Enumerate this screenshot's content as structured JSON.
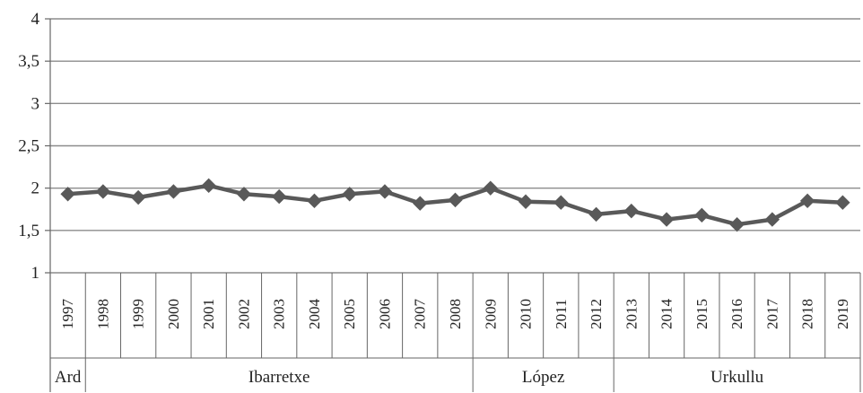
{
  "chart_data": {
    "type": "line",
    "categories": [
      "1997",
      "1998",
      "1999",
      "2000",
      "2001",
      "2002",
      "2003",
      "2004",
      "2005",
      "2006",
      "2007",
      "2008",
      "2009",
      "2010",
      "2011",
      "2012",
      "2013",
      "2014",
      "2015",
      "2016",
      "2017",
      "2018",
      "2019"
    ],
    "series": [
      {
        "values": [
          1.93,
          1.96,
          1.89,
          1.96,
          2.03,
          1.93,
          1.9,
          1.85,
          1.93,
          1.96,
          1.82,
          1.86,
          2.0,
          1.84,
          1.83,
          1.69,
          1.73,
          1.63,
          1.68,
          1.57,
          1.63,
          1.85,
          1.83
        ]
      }
    ],
    "y_ticks": [
      "1",
      "1,5",
      "2",
      "2,5",
      "3",
      "3,5",
      "4"
    ],
    "y_tick_values": [
      1,
      1.5,
      2,
      2.5,
      3,
      3.5,
      4
    ],
    "ylim": [
      1,
      4
    ],
    "groups": [
      {
        "label": "Ard",
        "start": "1997",
        "end": "1997"
      },
      {
        "label": "Ibarretxe",
        "start": "1998",
        "end": "2008"
      },
      {
        "label": "López",
        "start": "2009",
        "end": "2012"
      },
      {
        "label": "Urkullu",
        "start": "2013",
        "end": "2019"
      }
    ],
    "marker": "diamond",
    "grid": true,
    "colors": {
      "line": "#595959",
      "grid": "#8c8c8c",
      "axis": "#666666"
    }
  }
}
